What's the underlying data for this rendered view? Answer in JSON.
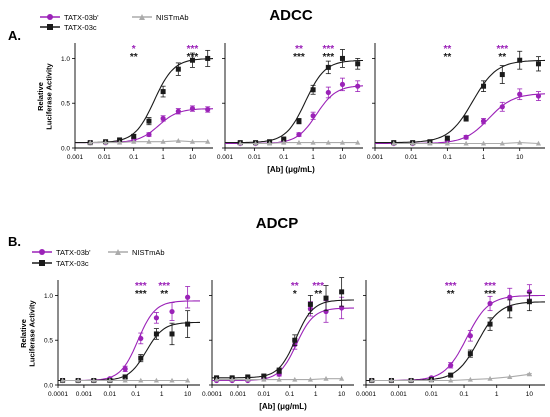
{
  "colors": {
    "purple": "#9B22B8",
    "black": "#1a1a1a",
    "gray": "#ababab"
  },
  "legend_top": [
    "TATX-03b'",
    "TATX-03c",
    "NISTmAb"
  ],
  "legend_bottom": [
    "TATX-03b'",
    "TATX-03c",
    "NISTmAb"
  ],
  "chart_data": [
    {
      "type": "scatter",
      "panel_label": "A.",
      "title": "ADCC",
      "subplot": 1,
      "xlabel": "",
      "ylabel": "Relative Luciferase Activity",
      "x_scale": "log",
      "xlim": [
        0.001,
        50
      ],
      "xticks": [
        "0.001",
        "0.01",
        "0.1",
        "1",
        "10"
      ],
      "ylim": [
        0,
        1.15
      ],
      "yticks": [
        "0.0",
        "0.5",
        "1.0"
      ],
      "x": [
        0.0033,
        0.011,
        0.033,
        0.1,
        0.33,
        1,
        3.3,
        10,
        33
      ],
      "series": [
        {
          "name": "TATX-03b'",
          "values": [
            0.06,
            0.06,
            0.07,
            0.09,
            0.15,
            0.33,
            0.41,
            0.44,
            0.43
          ],
          "err": [
            0.01,
            0.01,
            0.01,
            0.02,
            0.02,
            0.03,
            0.03,
            0.03,
            0.03
          ],
          "ec50": 0.7,
          "bottom": 0.06,
          "top": 0.44
        },
        {
          "name": "TATX-03c",
          "values": [
            0.06,
            0.07,
            0.09,
            0.13,
            0.3,
            0.63,
            0.88,
            0.98,
            1.0
          ],
          "err": [
            0.01,
            0.01,
            0.01,
            0.02,
            0.04,
            0.06,
            0.07,
            0.08,
            0.09
          ],
          "ec50": 0.5,
          "bottom": 0.06,
          "top": 1.0
        },
        {
          "name": "NISTmAb",
          "values": [
            0.06,
            0.06,
            0.06,
            0.07,
            0.07,
            0.07,
            0.08,
            0.07,
            0.07
          ],
          "err": [
            0,
            0,
            0,
            0,
            0,
            0,
            0,
            0,
            0
          ]
        }
      ],
      "significance": [
        {
          "x": 0.1,
          "purple": "*",
          "black": "**"
        },
        {
          "x": 10,
          "purple": "***",
          "black": "***"
        }
      ]
    },
    {
      "type": "scatter",
      "panel_label": "",
      "title": "",
      "subplot": 2,
      "xlabel": "",
      "ylabel": "",
      "x_scale": "log",
      "xlim": [
        0.001,
        50
      ],
      "xticks": [
        "0.001",
        "0.01",
        "0.1",
        "1",
        "10"
      ],
      "ylim": [
        0,
        1.15
      ],
      "x": [
        0.0033,
        0.011,
        0.033,
        0.1,
        0.33,
        1,
        3.3,
        10,
        33
      ],
      "series": [
        {
          "name": "TATX-03b'",
          "values": [
            0.05,
            0.05,
            0.06,
            0.07,
            0.15,
            0.36,
            0.62,
            0.71,
            0.69
          ],
          "err": [
            0.01,
            0.01,
            0.01,
            0.01,
            0.02,
            0.04,
            0.06,
            0.07,
            0.06
          ],
          "ec50": 1.3,
          "bottom": 0.05,
          "top": 0.7
        },
        {
          "name": "TATX-03c",
          "values": [
            0.06,
            0.06,
            0.07,
            0.1,
            0.3,
            0.65,
            0.9,
            1.0,
            0.94
          ],
          "err": [
            0.01,
            0.01,
            0.01,
            0.01,
            0.03,
            0.05,
            0.07,
            0.1,
            0.06
          ],
          "ec50": 0.55,
          "bottom": 0.06,
          "top": 0.98
        },
        {
          "name": "NISTmAb",
          "values": [
            0.05,
            0.05,
            0.05,
            0.06,
            0.06,
            0.06,
            0.06,
            0.06,
            0.06
          ],
          "err": [
            0,
            0,
            0,
            0,
            0,
            0,
            0,
            0,
            0
          ]
        }
      ],
      "significance": [
        {
          "x": 0.33,
          "purple": "**",
          "black": "***"
        },
        {
          "x": 3.3,
          "purple": "***",
          "black": "***"
        }
      ]
    },
    {
      "type": "scatter",
      "panel_label": "",
      "title": "",
      "subplot": 3,
      "xlabel": "[Ab] (μg/mL)",
      "ylabel": "",
      "x_scale": "log",
      "xlim": [
        0.001,
        50
      ],
      "xticks": [
        "0.001",
        "0.01",
        "0.1",
        "1",
        "10"
      ],
      "ylim": [
        0,
        1.15
      ],
      "x": [
        0.0033,
        0.011,
        0.033,
        0.1,
        0.33,
        1,
        3.3,
        10,
        33
      ],
      "series": [
        {
          "name": "TATX-03b'",
          "values": [
            0.05,
            0.05,
            0.06,
            0.08,
            0.12,
            0.3,
            0.46,
            0.6,
            0.58
          ],
          "err": [
            0.01,
            0.01,
            0.01,
            0.01,
            0.02,
            0.03,
            0.05,
            0.06,
            0.05
          ],
          "ec50": 1.4,
          "bottom": 0.05,
          "top": 0.61
        },
        {
          "name": "TATX-03c",
          "values": [
            0.06,
            0.06,
            0.07,
            0.11,
            0.33,
            0.69,
            0.82,
            0.98,
            0.94
          ],
          "err": [
            0.01,
            0.01,
            0.01,
            0.02,
            0.03,
            0.06,
            0.1,
            0.1,
            0.08
          ],
          "ec50": 0.5,
          "bottom": 0.06,
          "top": 0.98
        },
        {
          "name": "NISTmAb",
          "values": [
            0.05,
            0.05,
            0.05,
            0.05,
            0.05,
            0.05,
            0.05,
            0.06,
            0.05
          ],
          "err": [
            0,
            0,
            0,
            0,
            0,
            0,
            0,
            0,
            0
          ]
        }
      ],
      "significance": [
        {
          "x": 0.1,
          "purple": "**",
          "black": "**"
        },
        {
          "x": 3.3,
          "purple": "***",
          "black": "**"
        }
      ]
    },
    {
      "type": "scatter",
      "panel_label": "B.",
      "title": "ADCP",
      "subplot": 1,
      "xlabel": "",
      "ylabel": "Relative Luciferase Activity",
      "x_scale": "log",
      "xlim": [
        0.0001,
        30
      ],
      "xticks": [
        "0.0001",
        "0.001",
        "0.01",
        "0.1",
        "1",
        "10"
      ],
      "ylim": [
        0,
        1.15
      ],
      "yticks": [
        "0.0",
        "0.5",
        "1.0"
      ],
      "x": [
        0.00015,
        0.0006,
        0.0024,
        0.01,
        0.039,
        0.156,
        0.625,
        2.5,
        10
      ],
      "series": [
        {
          "name": "TATX-03b'",
          "values": [
            0.05,
            0.05,
            0.05,
            0.07,
            0.18,
            0.52,
            0.75,
            0.82,
            0.98
          ],
          "err": [
            0.01,
            0.01,
            0.01,
            0.01,
            0.03,
            0.06,
            0.06,
            0.1,
            0.12
          ],
          "ec50": 0.12,
          "bottom": 0.05,
          "top": 0.94
        },
        {
          "name": "TATX-03c",
          "values": [
            0.05,
            0.05,
            0.05,
            0.05,
            0.09,
            0.3,
            0.57,
            0.57,
            0.68
          ],
          "err": [
            0.01,
            0.01,
            0.01,
            0.01,
            0.02,
            0.04,
            0.06,
            0.12,
            0.15
          ],
          "ec50": 0.25,
          "bottom": 0.05,
          "top": 0.7
        },
        {
          "name": "NISTmAb",
          "values": [
            0.05,
            0.05,
            0.05,
            0.05,
            0.05,
            0.05,
            0.05,
            0.05,
            0.05
          ],
          "err": [
            0,
            0,
            0,
            0,
            0,
            0,
            0,
            0,
            0
          ]
        }
      ],
      "significance": [
        {
          "x": 0.156,
          "purple": "***",
          "black": "***"
        },
        {
          "x": 1.25,
          "purple": "***",
          "black": "**"
        }
      ]
    },
    {
      "type": "scatter",
      "panel_label": "",
      "title": "",
      "subplot": 2,
      "xlabel": "",
      "ylabel": "",
      "x_scale": "log",
      "xlim": [
        0.0001,
        30
      ],
      "xticks": [
        "0.0001",
        "0.001",
        "0.01",
        "0.1",
        "1",
        "10"
      ],
      "ylim": [
        0,
        1.15
      ],
      "x": [
        0.00015,
        0.0006,
        0.0024,
        0.01,
        0.039,
        0.156,
        0.625,
        2.5,
        10
      ],
      "series": [
        {
          "name": "TATX-03b'",
          "values": [
            0.05,
            0.05,
            0.05,
            0.07,
            0.12,
            0.45,
            0.85,
            0.82,
            0.86
          ],
          "err": [
            0.01,
            0.01,
            0.01,
            0.01,
            0.02,
            0.05,
            0.08,
            0.12,
            0.12
          ],
          "ec50": 0.18,
          "bottom": 0.05,
          "top": 0.86
        },
        {
          "name": "TATX-03c",
          "values": [
            0.08,
            0.08,
            0.09,
            0.1,
            0.16,
            0.5,
            0.9,
            0.97,
            1.04
          ],
          "err": [
            0.01,
            0.01,
            0.01,
            0.02,
            0.03,
            0.06,
            0.1,
            0.14,
            0.16
          ],
          "ec50": 0.17,
          "bottom": 0.08,
          "top": 0.95
        },
        {
          "name": "NISTmAb",
          "values": [
            0.06,
            0.06,
            0.06,
            0.06,
            0.06,
            0.06,
            0.06,
            0.07,
            0.07
          ],
          "err": [
            0,
            0,
            0,
            0,
            0,
            0,
            0,
            0,
            0
          ]
        }
      ],
      "significance": [
        {
          "x": 0.156,
          "purple": "**",
          "black": "*"
        },
        {
          "x": 1.25,
          "purple": "***",
          "black": "**"
        }
      ]
    },
    {
      "type": "scatter",
      "panel_label": "",
      "title": "",
      "subplot": 3,
      "xlabel": "[Ab] (μg/mL)",
      "ylabel": "",
      "x_scale": "log",
      "xlim": [
        0.0001,
        30
      ],
      "xticks": [
        "0.0001",
        "0.001",
        "0.01",
        "0.1",
        "1",
        "10"
      ],
      "ylim": [
        0,
        1.15
      ],
      "x": [
        0.00015,
        0.0006,
        0.0024,
        0.01,
        0.039,
        0.156,
        0.625,
        2.5,
        10
      ],
      "series": [
        {
          "name": "TATX-03b'",
          "values": [
            0.05,
            0.05,
            0.05,
            0.08,
            0.22,
            0.55,
            0.91,
            0.98,
            1.04
          ],
          "err": [
            0.01,
            0.01,
            0.01,
            0.01,
            0.03,
            0.06,
            0.08,
            0.1,
            0.08
          ],
          "ec50": 0.12,
          "bottom": 0.05,
          "top": 1.0
        },
        {
          "name": "TATX-03c",
          "values": [
            0.05,
            0.05,
            0.05,
            0.06,
            0.11,
            0.35,
            0.68,
            0.85,
            0.93
          ],
          "err": [
            0.01,
            0.01,
            0.01,
            0.01,
            0.02,
            0.04,
            0.07,
            0.1,
            0.1
          ],
          "ec50": 0.27,
          "bottom": 0.05,
          "top": 0.93
        },
        {
          "name": "NISTmAb",
          "values": [
            0.05,
            0.05,
            0.05,
            0.05,
            0.05,
            0.06,
            0.07,
            0.09,
            0.12
          ],
          "err": [
            0,
            0,
            0,
            0,
            0,
            0,
            0,
            0,
            0.01
          ]
        }
      ],
      "significance": [
        {
          "x": 0.039,
          "purple": "***",
          "black": "**"
        },
        {
          "x": 0.625,
          "purple": "***",
          "black": "***"
        }
      ]
    }
  ]
}
